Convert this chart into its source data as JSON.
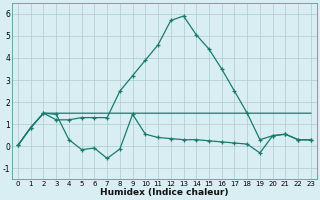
{
  "xlabel": "Humidex (Indice chaleur)",
  "x": [
    0,
    1,
    2,
    3,
    4,
    5,
    6,
    7,
    8,
    9,
    10,
    11,
    12,
    13,
    14,
    15,
    16,
    17,
    18,
    19,
    20,
    21,
    22,
    23
  ],
  "line_peak": [
    0.05,
    0.85,
    1.5,
    1.2,
    1.2,
    1.3,
    1.3,
    1.3,
    2.5,
    3.2,
    3.9,
    4.6,
    5.7,
    5.9,
    5.05,
    4.4,
    3.5,
    2.5,
    1.5,
    0.3,
    0.48,
    0.55,
    0.3,
    0.3
  ],
  "line_flat": [
    0.05,
    0.85,
    1.5,
    1.5,
    1.5,
    1.5,
    1.5,
    1.5,
    1.5,
    1.5,
    1.5,
    1.5,
    1.5,
    1.5,
    1.5,
    1.5,
    1.5,
    1.5,
    1.5,
    1.5,
    1.5,
    1.5,
    1.5,
    1.5
  ],
  "line_wavy": [
    0.05,
    0.85,
    1.5,
    1.45,
    0.3,
    -0.15,
    -0.08,
    -0.55,
    -0.12,
    1.45,
    0.55,
    0.4,
    0.35,
    0.3,
    0.3,
    0.25,
    0.2,
    0.15,
    0.1,
    -0.3,
    0.48,
    0.55,
    0.3,
    0.28
  ],
  "line_color": "#1a7a6e",
  "bg_color": "#d9eef2",
  "grid_color": "#adc9d2",
  "ylim": [
    -1.5,
    6.5
  ],
  "yticks": [
    -1,
    0,
    1,
    2,
    3,
    4,
    5,
    6
  ],
  "xticks": [
    0,
    1,
    2,
    3,
    4,
    5,
    6,
    7,
    8,
    9,
    10,
    11,
    12,
    13,
    14,
    15,
    16,
    17,
    18,
    19,
    20,
    21,
    22,
    23
  ]
}
